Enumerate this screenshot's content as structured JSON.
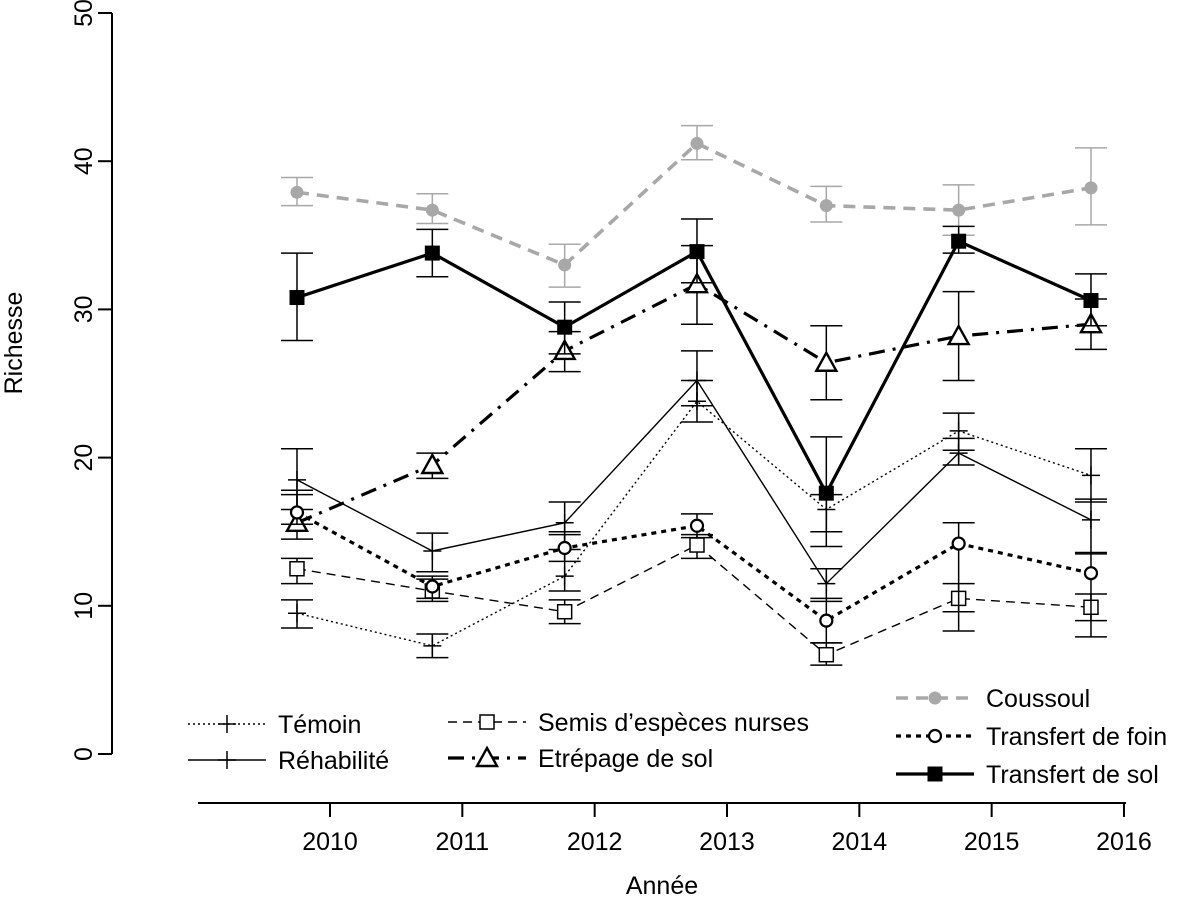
{
  "chart_data": {
    "type": "line",
    "title": "",
    "xlabel": "Année",
    "ylabel": "Richesse",
    "x": [
      2010,
      2011,
      2012,
      2013,
      2014,
      2015,
      2016
    ],
    "xlim": [
      2009,
      2016
    ],
    "ylim": [
      0,
      50
    ],
    "yticks": [
      0,
      10,
      20,
      30,
      40,
      50
    ],
    "grid": false,
    "legend_placement": "bottom",
    "series": [
      {
        "name": "Témoin",
        "style": "dotted",
        "marker": "plus",
        "color": "#000000",
        "values": [
          9.5,
          7.3,
          12.0,
          23.8,
          16.5,
          21.8,
          18.8
        ],
        "err_low": [
          8.5,
          6.5,
          11.0,
          22.4,
          15.0,
          20.5,
          17.0
        ],
        "err_high": [
          10.4,
          8.1,
          15.0,
          25.2,
          17.5,
          23.0,
          20.6
        ]
      },
      {
        "name": "Réhabilité",
        "style": "solid-thin",
        "marker": "plus",
        "color": "#000000",
        "values": [
          18.5,
          13.7,
          15.6,
          25.2,
          11.5,
          20.3,
          15.8
        ],
        "err_low": [
          16.5,
          12.3,
          13.8,
          23.5,
          10.3,
          19.5,
          13.5
        ],
        "err_high": [
          20.6,
          14.9,
          17.0,
          27.2,
          12.5,
          21.3,
          17.2
        ]
      },
      {
        "name": "Semis d’espèces nurses",
        "style": "dashed-thin",
        "marker": "square-open",
        "color": "#000000",
        "values": [
          12.5,
          11.0,
          9.6,
          14.1,
          6.7,
          10.5,
          9.9
        ],
        "err_low": [
          11.5,
          10.3,
          8.8,
          13.2,
          6.0,
          9.6,
          9.0
        ],
        "err_high": [
          13.2,
          11.8,
          10.4,
          14.8,
          7.5,
          11.5,
          10.8
        ]
      },
      {
        "name": "Etrépage de sol",
        "style": "dashdot-thick",
        "marker": "triangle-open",
        "color": "#000000",
        "values": [
          15.6,
          19.5,
          27.2,
          31.7,
          26.4,
          28.2,
          29.0
        ],
        "err_low": [
          14.5,
          18.6,
          25.8,
          29.0,
          23.9,
          25.2,
          27.3
        ],
        "err_high": [
          17.8,
          20.3,
          28.5,
          34.3,
          28.9,
          31.2,
          30.7
        ]
      },
      {
        "name": "Coussoul",
        "style": "dashed-thick-gray",
        "marker": "circle-filled",
        "color": "#a8a8a8",
        "values": [
          37.9,
          36.7,
          33.0,
          41.2,
          37.0,
          36.7,
          38.2
        ],
        "err_low": [
          37.0,
          35.8,
          31.5,
          40.1,
          35.9,
          35.0,
          35.7
        ],
        "err_high": [
          38.9,
          37.8,
          34.4,
          42.4,
          38.3,
          38.4,
          40.9
        ]
      },
      {
        "name": "Transfert de foin",
        "style": "dotted-thick",
        "marker": "circle-open",
        "color": "#000000",
        "values": [
          16.3,
          11.3,
          13.9,
          15.4,
          9.0,
          14.2,
          12.2
        ],
        "err_low": [
          15.5,
          10.5,
          13.0,
          14.6,
          7.5,
          8.3,
          7.9
        ],
        "err_high": [
          17.5,
          12.0,
          14.8,
          16.2,
          10.5,
          15.6,
          13.6
        ]
      },
      {
        "name": "Transfert de sol",
        "style": "solid-thick",
        "marker": "square-filled",
        "color": "#000000",
        "values": [
          30.8,
          33.8,
          28.8,
          33.9,
          17.6,
          34.6,
          30.6
        ],
        "err_low": [
          27.9,
          32.2,
          27.0,
          31.8,
          14.0,
          33.8,
          28.9
        ],
        "err_high": [
          33.8,
          35.4,
          30.5,
          36.1,
          21.4,
          35.6,
          32.4
        ]
      }
    ]
  }
}
